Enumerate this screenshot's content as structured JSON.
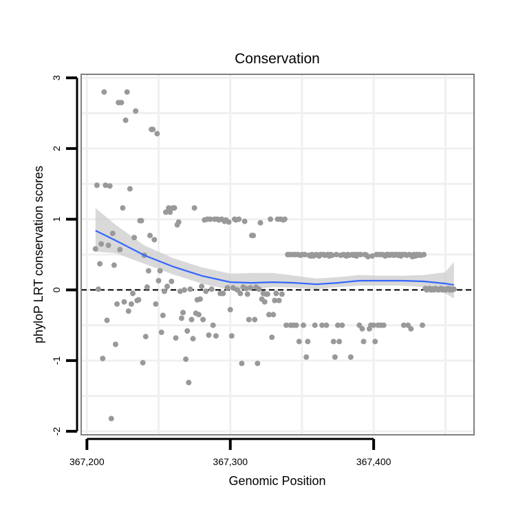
{
  "chart_data": {
    "type": "scatter",
    "title": "Conservation",
    "xlabel": "Genomic Position",
    "ylabel": "phyloP LRT conservation scores",
    "xlim": [
      367196,
      367470
    ],
    "ylim": [
      -2.05,
      3.05
    ],
    "x_ticks": [
      367200,
      367300,
      367400
    ],
    "x_tick_labels": [
      "367,200",
      "367,300",
      "367,400"
    ],
    "y_ticks": [
      -2,
      -1,
      0,
      1,
      2,
      3
    ],
    "y_tick_labels": [
      "-2",
      "-1",
      "0",
      "1",
      "2",
      "3"
    ],
    "grid": true,
    "reference_line": {
      "y": 0,
      "style": "dashed"
    },
    "colors": {
      "points": "#999999",
      "smooth": "#3366ff",
      "ribbon": "#cccccc",
      "panel_border": "#7f7f7f",
      "grid": "#f0f0f0"
    },
    "points": [
      [
        367206,
        0.58
      ],
      [
        367207,
        1.48
      ],
      [
        367208,
        0.01
      ],
      [
        367209,
        0.37
      ],
      [
        367210,
        0.65
      ],
      [
        367211,
        -0.97
      ],
      [
        367212,
        2.8
      ],
      [
        367213,
        1.48
      ],
      [
        367214,
        -0.43
      ],
      [
        367215,
        0.63
      ],
      [
        367216,
        1.47
      ],
      [
        367217,
        -1.82
      ],
      [
        367218,
        0.8
      ],
      [
        367219,
        0.35
      ],
      [
        367220,
        -0.77
      ],
      [
        367221,
        -0.2
      ],
      [
        367222,
        2.65
      ],
      [
        367223,
        0.57
      ],
      [
        367224,
        2.65
      ],
      [
        367225,
        1.16
      ],
      [
        367226,
        -0.17
      ],
      [
        367227,
        2.4
      ],
      [
        367228,
        2.8
      ],
      [
        367229,
        -0.3
      ],
      [
        367230,
        1.43
      ],
      [
        367231,
        -0.2
      ],
      [
        367232,
        -0.05
      ],
      [
        367233,
        0.74
      ],
      [
        367234,
        2.53
      ],
      [
        367235,
        -0.15
      ],
      [
        367236,
        -0.14
      ],
      [
        367237,
        0.98
      ],
      [
        367238,
        0.98
      ],
      [
        367239,
        -1.03
      ],
      [
        367240,
        0.49
      ],
      [
        367241,
        -0.66
      ],
      [
        367242,
        0.04
      ],
      [
        367243,
        0.27
      ],
      [
        367244,
        0.77
      ],
      [
        367245,
        2.27
      ],
      [
        367246,
        2.27
      ],
      [
        367247,
        0.71
      ],
      [
        367248,
        -0.2
      ],
      [
        367249,
        2.21
      ],
      [
        367250,
        0.13
      ],
      [
        367251,
        0.27
      ],
      [
        367252,
        -0.6
      ],
      [
        367253,
        -0.36
      ],
      [
        367254,
        -0.02
      ],
      [
        367255,
        1.1
      ],
      [
        367256,
        0.05
      ],
      [
        367257,
        1.16
      ],
      [
        367258,
        1.1
      ],
      [
        367259,
        0.12
      ],
      [
        367260,
        1.16
      ],
      [
        367261,
        1.16
      ],
      [
        367262,
        -0.68
      ],
      [
        367263,
        0.92
      ],
      [
        367264,
        0.96
      ],
      [
        367265,
        -0.02
      ],
      [
        367266,
        -0.4
      ],
      [
        367267,
        -0.32
      ],
      [
        367268,
        0.0
      ],
      [
        367269,
        -0.98
      ],
      [
        367270,
        -0.58
      ],
      [
        367271,
        -1.31
      ],
      [
        367272,
        0.01
      ],
      [
        367273,
        -0.42
      ],
      [
        367274,
        -0.69
      ],
      [
        367275,
        1.16
      ],
      [
        367276,
        -0.33
      ],
      [
        367277,
        -0.14
      ],
      [
        367278,
        -0.35
      ],
      [
        367279,
        -0.13
      ],
      [
        367280,
        0.05
      ],
      [
        367281,
        -0.42
      ],
      [
        367282,
        0.99
      ],
      [
        367283,
        -0.02
      ],
      [
        367284,
        1.0
      ],
      [
        367285,
        -0.64
      ],
      [
        367286,
        1.0
      ],
      [
        367287,
        0.01
      ],
      [
        367288,
        -0.5
      ],
      [
        367289,
        1.0
      ],
      [
        367290,
        -0.65
      ],
      [
        367291,
        1.0
      ],
      [
        367292,
        0.99
      ],
      [
        367293,
        -0.05
      ],
      [
        367294,
        1.0
      ],
      [
        367295,
        -0.05
      ],
      [
        367296,
        0.97
      ],
      [
        367297,
        0.99
      ],
      [
        367298,
        0.03
      ],
      [
        367299,
        0.96
      ],
      [
        367300,
        -0.28
      ],
      [
        367301,
        -0.65
      ],
      [
        367302,
        0.03
      ],
      [
        367303,
        1.0
      ],
      [
        367304,
        0.99
      ],
      [
        367305,
        0.0
      ],
      [
        367306,
        1.0
      ],
      [
        367307,
        -0.05
      ],
      [
        367308,
        -1.04
      ],
      [
        367309,
        0.04
      ],
      [
        367310,
        0.97
      ],
      [
        367311,
        0.02
      ],
      [
        367312,
        -0.06
      ],
      [
        367313,
        -0.42
      ],
      [
        367314,
        0.03
      ],
      [
        367315,
        0.77
      ],
      [
        367316,
        0.77
      ],
      [
        367317,
        -0.42
      ],
      [
        367318,
        0.04
      ],
      [
        367319,
        -1.04
      ],
      [
        367320,
        0.01
      ],
      [
        367321,
        0.95
      ],
      [
        367322,
        -0.13
      ],
      [
        367323,
        -0.05
      ],
      [
        367324,
        -0.17
      ],
      [
        367325,
        -0.06
      ],
      [
        367326,
        -0.06
      ],
      [
        367327,
        -0.35
      ],
      [
        367328,
        1.0
      ],
      [
        367329,
        -0.67
      ],
      [
        367330,
        -0.35
      ],
      [
        367331,
        -0.15
      ],
      [
        367332,
        -0.05
      ],
      [
        367333,
        1.0
      ],
      [
        367334,
        -0.15
      ],
      [
        367335,
        1.0
      ],
      [
        367336,
        -0.06
      ],
      [
        367337,
        0.99
      ],
      [
        367338,
        1.0
      ],
      [
        367339,
        -0.5
      ],
      [
        367340,
        0.5
      ],
      [
        367341,
        0.5
      ],
      [
        367342,
        -0.5
      ],
      [
        367343,
        0.5
      ],
      [
        367344,
        -0.5
      ],
      [
        367345,
        0.5
      ],
      [
        367346,
        -0.5
      ],
      [
        367347,
        0.5
      ],
      [
        367348,
        -0.73
      ],
      [
        367349,
        0.49
      ],
      [
        367350,
        0.5
      ],
      [
        367351,
        -0.5
      ],
      [
        367352,
        0.5
      ],
      [
        367353,
        -0.95
      ],
      [
        367354,
        -0.73
      ],
      [
        367355,
        0.49
      ],
      [
        367356,
        0.48
      ],
      [
        367357,
        0.5
      ],
      [
        367358,
        0.48
      ],
      [
        367359,
        -0.5
      ],
      [
        367360,
        0.5
      ],
      [
        367361,
        0.49
      ],
      [
        367362,
        0.48
      ],
      [
        367363,
        0.5
      ],
      [
        367364,
        -0.5
      ],
      [
        367365,
        0.5
      ],
      [
        367366,
        0.49
      ],
      [
        367367,
        -0.5
      ],
      [
        367368,
        0.5
      ],
      [
        367369,
        0.48
      ],
      [
        367370,
        0.5
      ],
      [
        367371,
        0.49
      ],
      [
        367372,
        -0.73
      ],
      [
        367373,
        -0.95
      ],
      [
        367374,
        0.5
      ],
      [
        367375,
        -0.5
      ],
      [
        367376,
        -0.73
      ],
      [
        367377,
        0.49
      ],
      [
        367378,
        -0.5
      ],
      [
        367379,
        0.5
      ],
      [
        367380,
        0.49
      ],
      [
        367381,
        0.48
      ],
      [
        367382,
        0.5
      ],
      [
        367383,
        0.49
      ],
      [
        367384,
        -0.95
      ],
      [
        367385,
        0.5
      ],
      [
        367386,
        0.49
      ],
      [
        367387,
        0.5
      ],
      [
        367388,
        0.48
      ],
      [
        367389,
        0.5
      ],
      [
        367390,
        -0.5
      ],
      [
        367391,
        0.5
      ],
      [
        367392,
        -0.55
      ],
      [
        367393,
        -0.73
      ],
      [
        367394,
        0.5
      ],
      [
        367395,
        0.49
      ],
      [
        367396,
        0.47
      ],
      [
        367397,
        -0.55
      ],
      [
        367398,
        -0.5
      ],
      [
        367399,
        0.48
      ],
      [
        367400,
        -0.5
      ],
      [
        367401,
        -0.73
      ],
      [
        367402,
        0.5
      ],
      [
        367403,
        -0.5
      ],
      [
        367404,
        0.5
      ],
      [
        367405,
        -0.5
      ],
      [
        367406,
        0.5
      ],
      [
        367407,
        -0.5
      ],
      [
        367408,
        0.48
      ],
      [
        367409,
        0.5
      ],
      [
        367410,
        0.5
      ],
      [
        367411,
        0.49
      ],
      [
        367412,
        0.5
      ],
      [
        367413,
        0.5
      ],
      [
        367414,
        0.49
      ],
      [
        367415,
        0.5
      ],
      [
        367416,
        0.5
      ],
      [
        367417,
        0.49
      ],
      [
        367418,
        0.5
      ],
      [
        367419,
        0.48
      ],
      [
        367420,
        0.5
      ],
      [
        367421,
        -0.5
      ],
      [
        367422,
        0.5
      ],
      [
        367423,
        0.49
      ],
      [
        367424,
        -0.5
      ],
      [
        367425,
        0.5
      ],
      [
        367426,
        -0.55
      ],
      [
        367427,
        0.47
      ],
      [
        367428,
        0.5
      ],
      [
        367429,
        0.48
      ],
      [
        367430,
        0.5
      ],
      [
        367431,
        0.49
      ],
      [
        367432,
        0.5
      ],
      [
        367433,
        0.49
      ],
      [
        367434,
        -0.5
      ],
      [
        367435,
        0.5
      ],
      [
        367436,
        0.02
      ],
      [
        367437,
        0.0
      ],
      [
        367438,
        0.01
      ],
      [
        367439,
        0.02
      ],
      [
        367440,
        0.0
      ],
      [
        367441,
        0.01
      ],
      [
        367442,
        0.0
      ],
      [
        367443,
        0.02
      ],
      [
        367444,
        0.01
      ],
      [
        367445,
        0.0
      ],
      [
        367446,
        0.01
      ],
      [
        367447,
        0.02
      ],
      [
        367448,
        0.0
      ],
      [
        367449,
        0.01
      ],
      [
        367450,
        0.0
      ],
      [
        367451,
        0.01
      ],
      [
        367452,
        0.02
      ],
      [
        367453,
        0.0
      ],
      [
        367454,
        0.01
      ],
      [
        367455,
        0.0
      ],
      [
        367456,
        0.01
      ]
    ],
    "smooth": {
      "x": [
        367206,
        367220,
        367240,
        367260,
        367280,
        367300,
        367315,
        367330,
        367345,
        367360,
        367375,
        367390,
        367405,
        367420,
        367435,
        367450,
        367456
      ],
      "y": [
        0.84,
        0.7,
        0.49,
        0.33,
        0.2,
        0.11,
        0.1,
        0.11,
        0.1,
        0.08,
        0.1,
        0.13,
        0.13,
        0.13,
        0.12,
        0.09,
        0.07
      ],
      "lower": [
        0.54,
        0.52,
        0.37,
        0.22,
        0.09,
        0.0,
        0.01,
        0.04,
        0.03,
        0.01,
        0.04,
        0.06,
        0.06,
        0.06,
        0.04,
        -0.05,
        -0.12
      ],
      "upper": [
        1.16,
        0.92,
        0.63,
        0.45,
        0.32,
        0.23,
        0.24,
        0.24,
        0.2,
        0.16,
        0.18,
        0.21,
        0.2,
        0.2,
        0.21,
        0.25,
        0.4
      ]
    }
  }
}
